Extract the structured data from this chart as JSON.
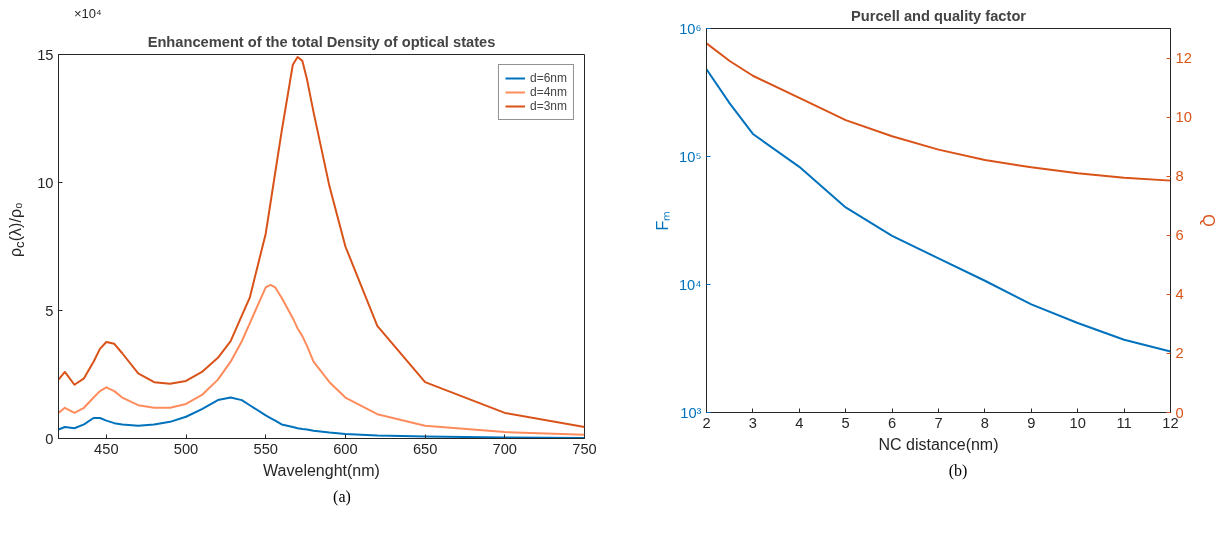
{
  "chart_data": [
    {
      "type": "line",
      "title": "Enhancement of the total Density of optical states",
      "xlabel": "Wavelenght(nm)",
      "ylabel": "ρ$_{c}$(λ)/ρ₀",
      "xlim": [
        420,
        750
      ],
      "xticks": [
        450,
        500,
        550,
        600,
        650,
        700,
        750
      ],
      "ylim": [
        0,
        15
      ],
      "yticks": [
        0,
        5,
        10,
        15
      ],
      "grid": false,
      "legend": "top right",
      "annotations": [
        "×10⁴",
        "(a)"
      ],
      "x": [
        420,
        424,
        430,
        436,
        442,
        446,
        450,
        455,
        460,
        470,
        480,
        490,
        500,
        510,
        520,
        528,
        535,
        540,
        550,
        553,
        556,
        560,
        567,
        570,
        573,
        576,
        580,
        590,
        600,
        620,
        650,
        700,
        750
      ],
      "series": [
        {
          "name": "d=6nm",
          "color": "#0072bd",
          "values": [
            0.35,
            0.45,
            0.4,
            0.55,
            0.8,
            0.8,
            0.7,
            0.6,
            0.55,
            0.5,
            0.55,
            0.65,
            0.85,
            1.15,
            1.5,
            1.6,
            1.5,
            1.3,
            0.9,
            0.8,
            0.7,
            0.55,
            0.45,
            0.4,
            0.37,
            0.35,
            0.3,
            0.23,
            0.18,
            0.12,
            0.08,
            0.04,
            0.02
          ]
        },
        {
          "name": "d=4nm",
          "color": "#ff8c5c",
          "values": [
            1.0,
            1.2,
            1.0,
            1.2,
            1.6,
            1.85,
            2.0,
            1.85,
            1.6,
            1.3,
            1.2,
            1.2,
            1.35,
            1.7,
            2.3,
            3.0,
            3.8,
            4.5,
            5.9,
            6.0,
            5.9,
            5.5,
            4.7,
            4.3,
            4.0,
            3.6,
            3.0,
            2.2,
            1.6,
            0.95,
            0.5,
            0.25,
            0.15
          ]
        },
        {
          "name": "d=3nm",
          "color": "#d95319",
          "values": [
            2.3,
            2.6,
            2.1,
            2.35,
            3.0,
            3.5,
            3.77,
            3.7,
            3.33,
            2.54,
            2.2,
            2.14,
            2.25,
            2.6,
            3.15,
            3.8,
            4.8,
            5.5,
            8.0,
            9.2,
            10.4,
            12.0,
            14.6,
            14.9,
            14.75,
            14.0,
            12.75,
            9.85,
            7.5,
            4.4,
            2.2,
            1.0,
            0.45
          ]
        }
      ]
    },
    {
      "type": "line",
      "title": "Purcell and quality factor",
      "xlabel": "NC distance(nm)",
      "ylabel": "Fₘ",
      "y2label": "Q",
      "xlim": [
        2,
        12
      ],
      "xticks": [
        2,
        3,
        4,
        5,
        6,
        7,
        8,
        9,
        10,
        11,
        12
      ],
      "log": "y",
      "ylim": [
        1000,
        1000000
      ],
      "yticks": [
        {
          "value": 1000,
          "label": "10³"
        },
        {
          "value": 10000,
          "label": "10⁴"
        },
        {
          "value": 100000,
          "label": "10⁵"
        },
        {
          "value": 1000000,
          "label": "10⁶"
        }
      ],
      "y2lim": [
        0,
        13
      ],
      "y2ticks": [
        0,
        2,
        4,
        6,
        8,
        10,
        12
      ],
      "grid": false,
      "legend": false,
      "annotations": [
        "(b)"
      ],
      "x": [
        2,
        2.5,
        3,
        4,
        5,
        6,
        7,
        8,
        9,
        10,
        11,
        12
      ],
      "series": [
        {
          "color": "#0072bd",
          "values": [
            480000,
            260000,
            150000,
            83000,
            40000,
            24000,
            16000,
            10700,
            7000,
            5000,
            3700,
            3000
          ]
        },
        {
          "color": "#d95319",
          "axis": "y2",
          "values": [
            12.5,
            11.9,
            11.4,
            10.65,
            9.9,
            9.35,
            8.9,
            8.55,
            8.3,
            8.1,
            7.95,
            7.85
          ]
        }
      ]
    }
  ]
}
